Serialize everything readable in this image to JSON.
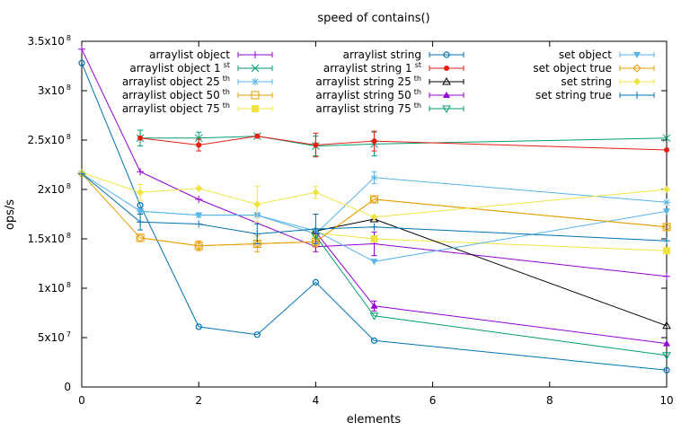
{
  "chart_data": {
    "type": "line",
    "title": "speed of contains()",
    "xlabel": "elements",
    "ylabel": "ops/s",
    "xlim": [
      0,
      10
    ],
    "ylim": [
      0,
      350000000
    ],
    "grid": false,
    "legend_position": "top, three columns",
    "x_ticks": [
      {
        "value": 0,
        "label": "0"
      },
      {
        "value": 2,
        "label": "2"
      },
      {
        "value": 4,
        "label": "4"
      },
      {
        "value": 6,
        "label": "6"
      },
      {
        "value": 8,
        "label": "8"
      },
      {
        "value": 10,
        "label": "10"
      }
    ],
    "y_ticks": [
      {
        "value": 0,
        "mantissa": "0",
        "exp": ""
      },
      {
        "value": 50000000,
        "mantissa": "5x10",
        "exp": "7"
      },
      {
        "value": 100000000,
        "mantissa": "1x10",
        "exp": "8"
      },
      {
        "value": 150000000,
        "mantissa": "1.5x10",
        "exp": "8"
      },
      {
        "value": 200000000,
        "mantissa": "2x10",
        "exp": "8"
      },
      {
        "value": 250000000,
        "mantissa": "2.5x10",
        "exp": "8"
      },
      {
        "value": 300000000,
        "mantissa": "3x10",
        "exp": "8"
      },
      {
        "value": 350000000,
        "mantissa": "3.5x10",
        "exp": "8"
      }
    ],
    "series": [
      {
        "name": "arraylist object",
        "sup": "",
        "color": "#9400d3",
        "marker": "plus",
        "x": [
          0,
          1,
          2,
          4,
          5,
          10
        ],
        "y": [
          342000000,
          218000000,
          190000000,
          142000000,
          145000000,
          112000000
        ],
        "err": [
          0,
          0,
          0,
          5000000,
          12000000,
          0
        ]
      },
      {
        "name": "arraylist object 1",
        "sup": "st",
        "color": "#009e73",
        "marker": "cross",
        "x": [
          1,
          2,
          3,
          4,
          5,
          10
        ],
        "y": [
          252000000,
          252000000,
          254000000,
          244000000,
          246000000,
          252000000
        ],
        "err": [
          8000000,
          6000000,
          0,
          10000000,
          12000000,
          0
        ]
      },
      {
        "name": "arraylist object 25",
        "sup": "th",
        "color": "#56b4e9",
        "marker": "star",
        "x": [
          1,
          2,
          3,
          4,
          5,
          10
        ],
        "y": [
          178000000,
          174000000,
          174000000,
          155000000,
          212000000,
          187000000
        ],
        "err": [
          0,
          0,
          0,
          0,
          6000000,
          0
        ]
      },
      {
        "name": "arraylist object 50",
        "sup": "th",
        "color": "#e69f00",
        "marker": "square-open",
        "x": [
          1,
          2,
          3,
          4,
          5,
          10
        ],
        "y": [
          151000000,
          143000000,
          145000000,
          147000000,
          190000000,
          162000000
        ],
        "err": [
          0,
          5000000,
          8000000,
          5000000,
          0,
          0
        ]
      },
      {
        "name": "arraylist object 75",
        "sup": "th",
        "color": "#f0e442",
        "marker": "square-filled",
        "x": [
          4,
          5,
          10
        ],
        "y": [
          156000000,
          150000000,
          138000000
        ],
        "err": [
          0,
          0,
          0
        ]
      },
      {
        "name": "arraylist string",
        "sup": "",
        "color": "#0072b2",
        "marker": "circle-open",
        "x": [
          0,
          1,
          2,
          3,
          4,
          5,
          10
        ],
        "y": [
          328000000,
          184000000,
          61000000,
          53000000,
          106000000,
          47000000,
          17000000
        ],
        "err": [
          0,
          0,
          0,
          0,
          0,
          0,
          0
        ]
      },
      {
        "name": "arraylist string 1",
        "sup": "st",
        "color": "#e51e10",
        "marker": "circle-filled",
        "x": [
          1,
          2,
          3,
          4,
          5,
          10
        ],
        "y": [
          252000000,
          245000000,
          254000000,
          245000000,
          249000000,
          240000000
        ],
        "err": [
          0,
          6000000,
          0,
          12000000,
          10000000,
          0
        ]
      },
      {
        "name": "arraylist string 25",
        "sup": "th",
        "color": "#000000",
        "marker": "triangle-open",
        "x": [
          4,
          5,
          10
        ],
        "y": [
          158000000,
          170000000,
          62000000
        ],
        "err": [
          0,
          0,
          0
        ]
      },
      {
        "name": "arraylist string 50",
        "sup": "th",
        "color": "#9400d3",
        "marker": "triangle-filled",
        "x": [
          4,
          5,
          10
        ],
        "y": [
          157000000,
          82000000,
          44000000
        ],
        "err": [
          0,
          5000000,
          0
        ]
      },
      {
        "name": "arraylist string 75",
        "sup": "th",
        "color": "#009e73",
        "marker": "triangle-down-open",
        "x": [
          4,
          5,
          10
        ],
        "y": [
          153000000,
          72000000,
          32000000
        ],
        "err": [
          0,
          0,
          0
        ]
      },
      {
        "name": "set object",
        "sup": "",
        "color": "#56b4e9",
        "marker": "triangle-down-filled",
        "x": [
          0,
          1,
          2,
          3,
          4,
          5,
          10
        ],
        "y": [
          216000000,
          178000000,
          174000000,
          174000000,
          158000000,
          127000000,
          178000000
        ],
        "err": [
          0,
          0,
          0,
          0,
          0,
          0,
          0
        ]
      },
      {
        "name": "set object true",
        "sup": "",
        "color": "#e69f00",
        "marker": "diamond-open",
        "x": [
          0,
          1,
          2,
          3,
          4,
          5,
          10
        ],
        "y": [
          216000000,
          151000000,
          143000000,
          145000000,
          147000000,
          190000000,
          162000000
        ],
        "err": [
          0,
          0,
          0,
          0,
          0,
          0,
          0
        ]
      },
      {
        "name": "set string",
        "sup": "",
        "color": "#f0e442",
        "marker": "diamond-filled",
        "x": [
          0,
          1,
          2,
          3,
          4,
          5,
          10
        ],
        "y": [
          217000000,
          197000000,
          201000000,
          185000000,
          197000000,
          172000000,
          200000000
        ],
        "err": [
          0,
          8000000,
          0,
          18000000,
          6000000,
          0,
          0
        ]
      },
      {
        "name": "set string true",
        "sup": "",
        "color": "#0072b2",
        "marker": "plus",
        "x": [
          0,
          1,
          2,
          3,
          4,
          5,
          10
        ],
        "y": [
          216000000,
          167000000,
          165000000,
          155000000,
          160000000,
          162000000,
          148000000
        ],
        "err": [
          0,
          8000000,
          0,
          10000000,
          15000000,
          0,
          0
        ]
      }
    ]
  }
}
